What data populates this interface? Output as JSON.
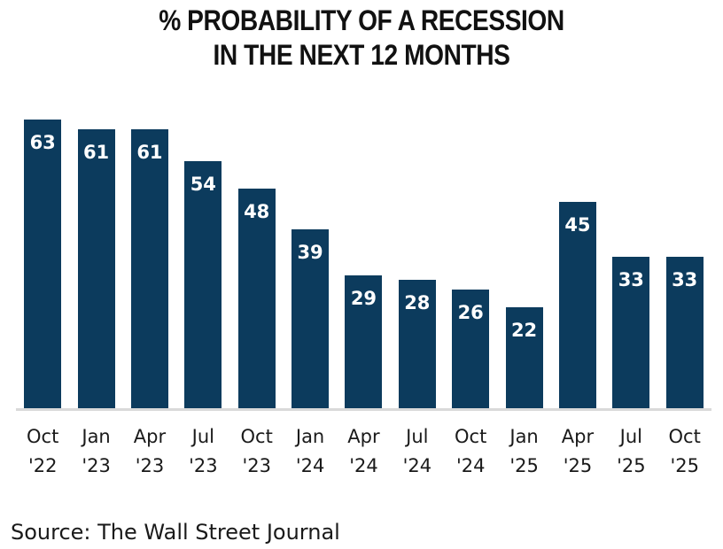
{
  "page": {
    "title_line1": "% PROBABILITY OF A RECESSION",
    "title_line2": "IN THE NEXT 12 MONTHS",
    "source": "Source: The Wall Street Journal"
  },
  "chart_data": {
    "type": "bar",
    "title": "% PROBABILITY OF A RECESSION IN THE NEXT 12 MONTHS",
    "categories": [
      "Oct '22",
      "Jan '23",
      "Apr '23",
      "Jul '23",
      "Oct '23",
      "Jan '24",
      "Apr '24",
      "Jul '24",
      "Oct '24",
      "Jan '25",
      "Apr '25",
      "Jul '25",
      "Oct '25"
    ],
    "values": [
      63,
      61,
      61,
      54,
      48,
      39,
      29,
      28,
      26,
      22,
      45,
      33,
      33
    ],
    "xlabel": "",
    "ylabel": "",
    "ylim": [
      0,
      65
    ],
    "grid": false,
    "legend": false,
    "value_labels_position": "inside-top",
    "colors": {
      "bar": "#0c3b5d",
      "value_label": "#ffffff",
      "baseline": "#d9d9d9",
      "text": "#1a1a1a"
    }
  }
}
